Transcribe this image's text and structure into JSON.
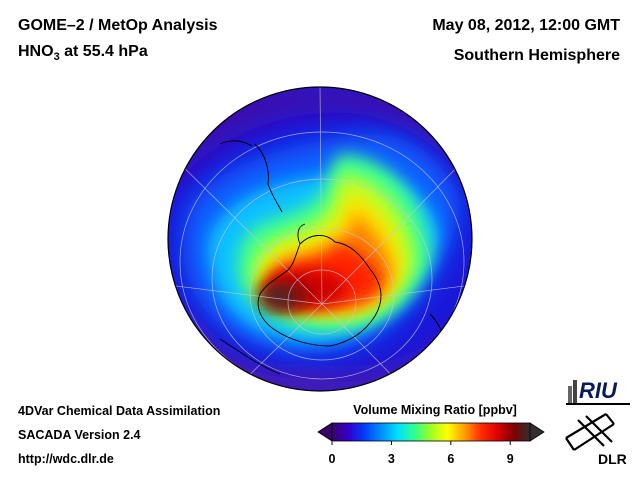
{
  "header": {
    "instrument": "GOME–2 / MetOp Analysis",
    "species_main": "HNO",
    "species_sub": "3",
    "species_rest": " at 55.4 hPa",
    "date": "May 08, 2012, 12:00 GMT",
    "hemisphere": "Southern Hemisphere"
  },
  "footer": {
    "line1": "4DVar Chemical Data Assimilation",
    "line2": "SACADA Version 2.4",
    "line3": "http://wdc.dlr.de"
  },
  "colorbar": {
    "title": "Volume Mixing Ratio [ppbv]",
    "ticks": [
      "0",
      "3",
      "6",
      "9"
    ],
    "tick_values": [
      0,
      3,
      6,
      9
    ],
    "range": [
      0,
      10
    ],
    "colors": [
      "#3a006a",
      "#3300cc",
      "#0040ff",
      "#0090ff",
      "#00e0ff",
      "#30ff90",
      "#a0ff20",
      "#ffff00",
      "#ffa000",
      "#ff3000",
      "#e00000",
      "#800000",
      "#303030"
    ]
  },
  "logos": {
    "riu": "RIU",
    "dlr": "DLR"
  }
}
